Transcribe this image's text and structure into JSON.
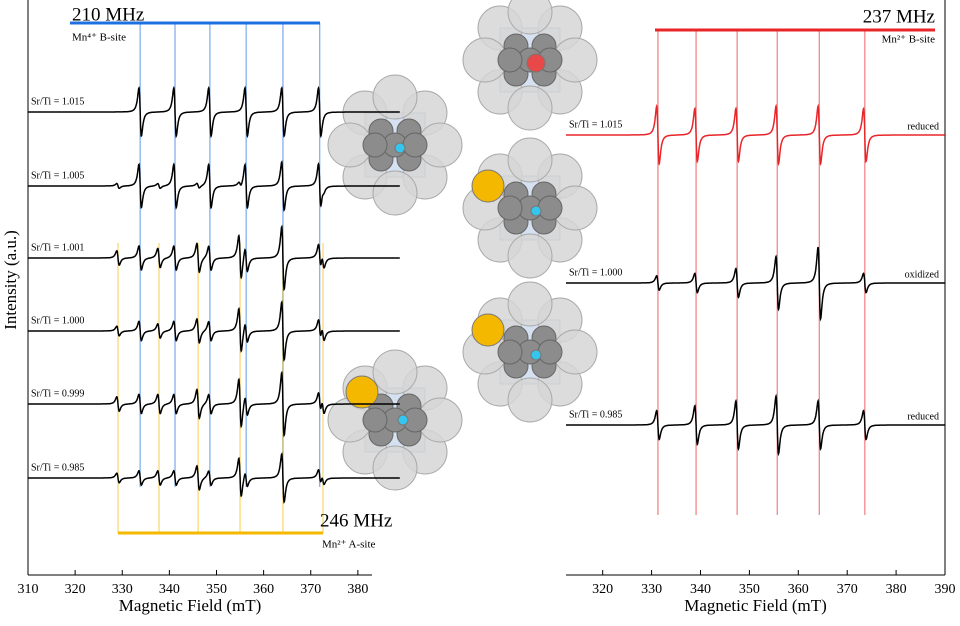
{
  "chart_data": [
    {
      "type": "epr",
      "x_label": "Magnetic Field (mT)",
      "y_label": "Intensity (a.u.)",
      "xlim": [
        310,
        383
      ],
      "xticks": [
        310,
        320,
        330,
        340,
        350,
        360,
        370,
        380
      ],
      "sites": [
        {
          "label": "210 MHz",
          "sublabel": "Mn⁴⁺ B-site",
          "color": "#1f6fe0",
          "positions": [
            333.8,
            341.2,
            348.6,
            356.3,
            364.1,
            371.9
          ]
        },
        {
          "label": "246 MHz",
          "sublabel": "Mn²⁺ A-site",
          "color": "#f5b800",
          "positions": [
            329.1,
            337.8,
            346.1,
            355.0,
            364.1,
            372.6
          ]
        }
      ],
      "spectra": [
        {
          "name": "Sr/Ti = 1.015",
          "color": "#000000",
          "b_site": [
            1.0,
            1.0,
            1.0,
            1.0,
            1.0,
            1.0
          ],
          "a_site": [
            0,
            0,
            0,
            0,
            0,
            0
          ]
        },
        {
          "name": "Sr/Ti = 1.005",
          "color": "#000000",
          "b_site": [
            0.9,
            0.9,
            0.9,
            0.9,
            0.9,
            0.9
          ],
          "a_site": [
            0.1,
            0.1,
            0.1,
            0.1,
            0.1,
            0.1
          ]
        },
        {
          "name": "Sr/Ti = 1.001",
          "color": "#000000",
          "b_site": [
            0.5,
            0.5,
            0.5,
            0.5,
            0.5,
            0.5
          ],
          "a_site": [
            0.3,
            0.4,
            0.6,
            0.9,
            0.8,
            0.3
          ]
        },
        {
          "name": "Sr/Ti = 1.000",
          "color": "#000000",
          "b_site": [
            0.4,
            0.4,
            0.4,
            0.4,
            0.4,
            0.4
          ],
          "a_site": [
            0.2,
            0.3,
            0.5,
            0.9,
            0.8,
            0.3
          ]
        },
        {
          "name": "Sr/Ti = 0.999",
          "color": "#000000",
          "b_site": [
            0.4,
            0.4,
            0.4,
            0.4,
            0.4,
            0.4
          ],
          "a_site": [
            0.3,
            0.4,
            0.6,
            1.0,
            0.9,
            0.3
          ]
        },
        {
          "name": "Sr/Ti = 0.985",
          "color": "#000000",
          "b_site": [
            0.3,
            0.3,
            0.3,
            0.3,
            0.3,
            0.3
          ],
          "a_site": [
            0.2,
            0.3,
            0.5,
            0.8,
            0.7,
            0.2
          ]
        }
      ]
    },
    {
      "type": "epr",
      "x_label": "Magnetic Field (mT)",
      "xlim": [
        312.5,
        390
      ],
      "xticks": [
        320,
        330,
        340,
        350,
        360,
        370,
        380,
        390
      ],
      "sites": [
        {
          "label": "237 MHz",
          "sublabel": "Mn²⁺ B-site",
          "color": "#e8262a",
          "positions": [
            331.3,
            339.1,
            347.5,
            355.7,
            364.3,
            373.6
          ]
        }
      ],
      "spectra": [
        {
          "name": "Sr/Ti = 1.015",
          "state": "reduced",
          "color": "#e8262a",
          "b_site": [
            1.2,
            1.1,
            1.1,
            1.2,
            1.2,
            1.1
          ]
        },
        {
          "name": "Sr/Ti = 1.000",
          "state": "oxidized",
          "color": "#000000",
          "b_site": [
            0.3,
            0.4,
            0.6,
            1.1,
            1.5,
            0.4
          ]
        },
        {
          "name": "Sr/Ti = 0.985",
          "state": "reduced",
          "color": "#000000",
          "b_site": [
            0.6,
            0.8,
            1.0,
            1.2,
            1.0,
            0.6
          ]
        }
      ]
    }
  ]
}
